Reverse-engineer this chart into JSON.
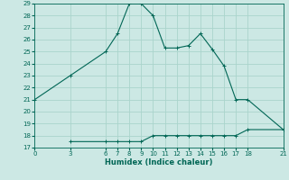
{
  "xlabel": "Humidex (Indice chaleur)",
  "bg_color": "#cce8e4",
  "grid_color": "#aad4cc",
  "line_color": "#006655",
  "line1_x": [
    0,
    3,
    6,
    7,
    8,
    9,
    10,
    11,
    12,
    13,
    14,
    15,
    16,
    17,
    18,
    21
  ],
  "line1_y": [
    21,
    23,
    25,
    26.5,
    29,
    29,
    28,
    25.3,
    25.3,
    25.5,
    26.5,
    25.2,
    23.8,
    21,
    21,
    18.5
  ],
  "line2_x": [
    3,
    6,
    7,
    8,
    9,
    10,
    11,
    12,
    13,
    14,
    15,
    16,
    17,
    18,
    21
  ],
  "line2_y": [
    17.5,
    17.5,
    17.5,
    17.5,
    17.5,
    18,
    18,
    18,
    18,
    18,
    18,
    18,
    18,
    18.5,
    18.5
  ],
  "xlim": [
    0,
    21
  ],
  "ylim": [
    17,
    29
  ],
  "yticks": [
    17,
    18,
    19,
    20,
    21,
    22,
    23,
    24,
    25,
    26,
    27,
    28,
    29
  ],
  "xticks": [
    0,
    3,
    6,
    7,
    8,
    9,
    10,
    11,
    12,
    13,
    14,
    15,
    16,
    17,
    18,
    21
  ],
  "xlabel_fontsize": 6,
  "tick_fontsize": 5,
  "linewidth": 0.8,
  "marker_size": 3,
  "marker_ew": 0.7
}
